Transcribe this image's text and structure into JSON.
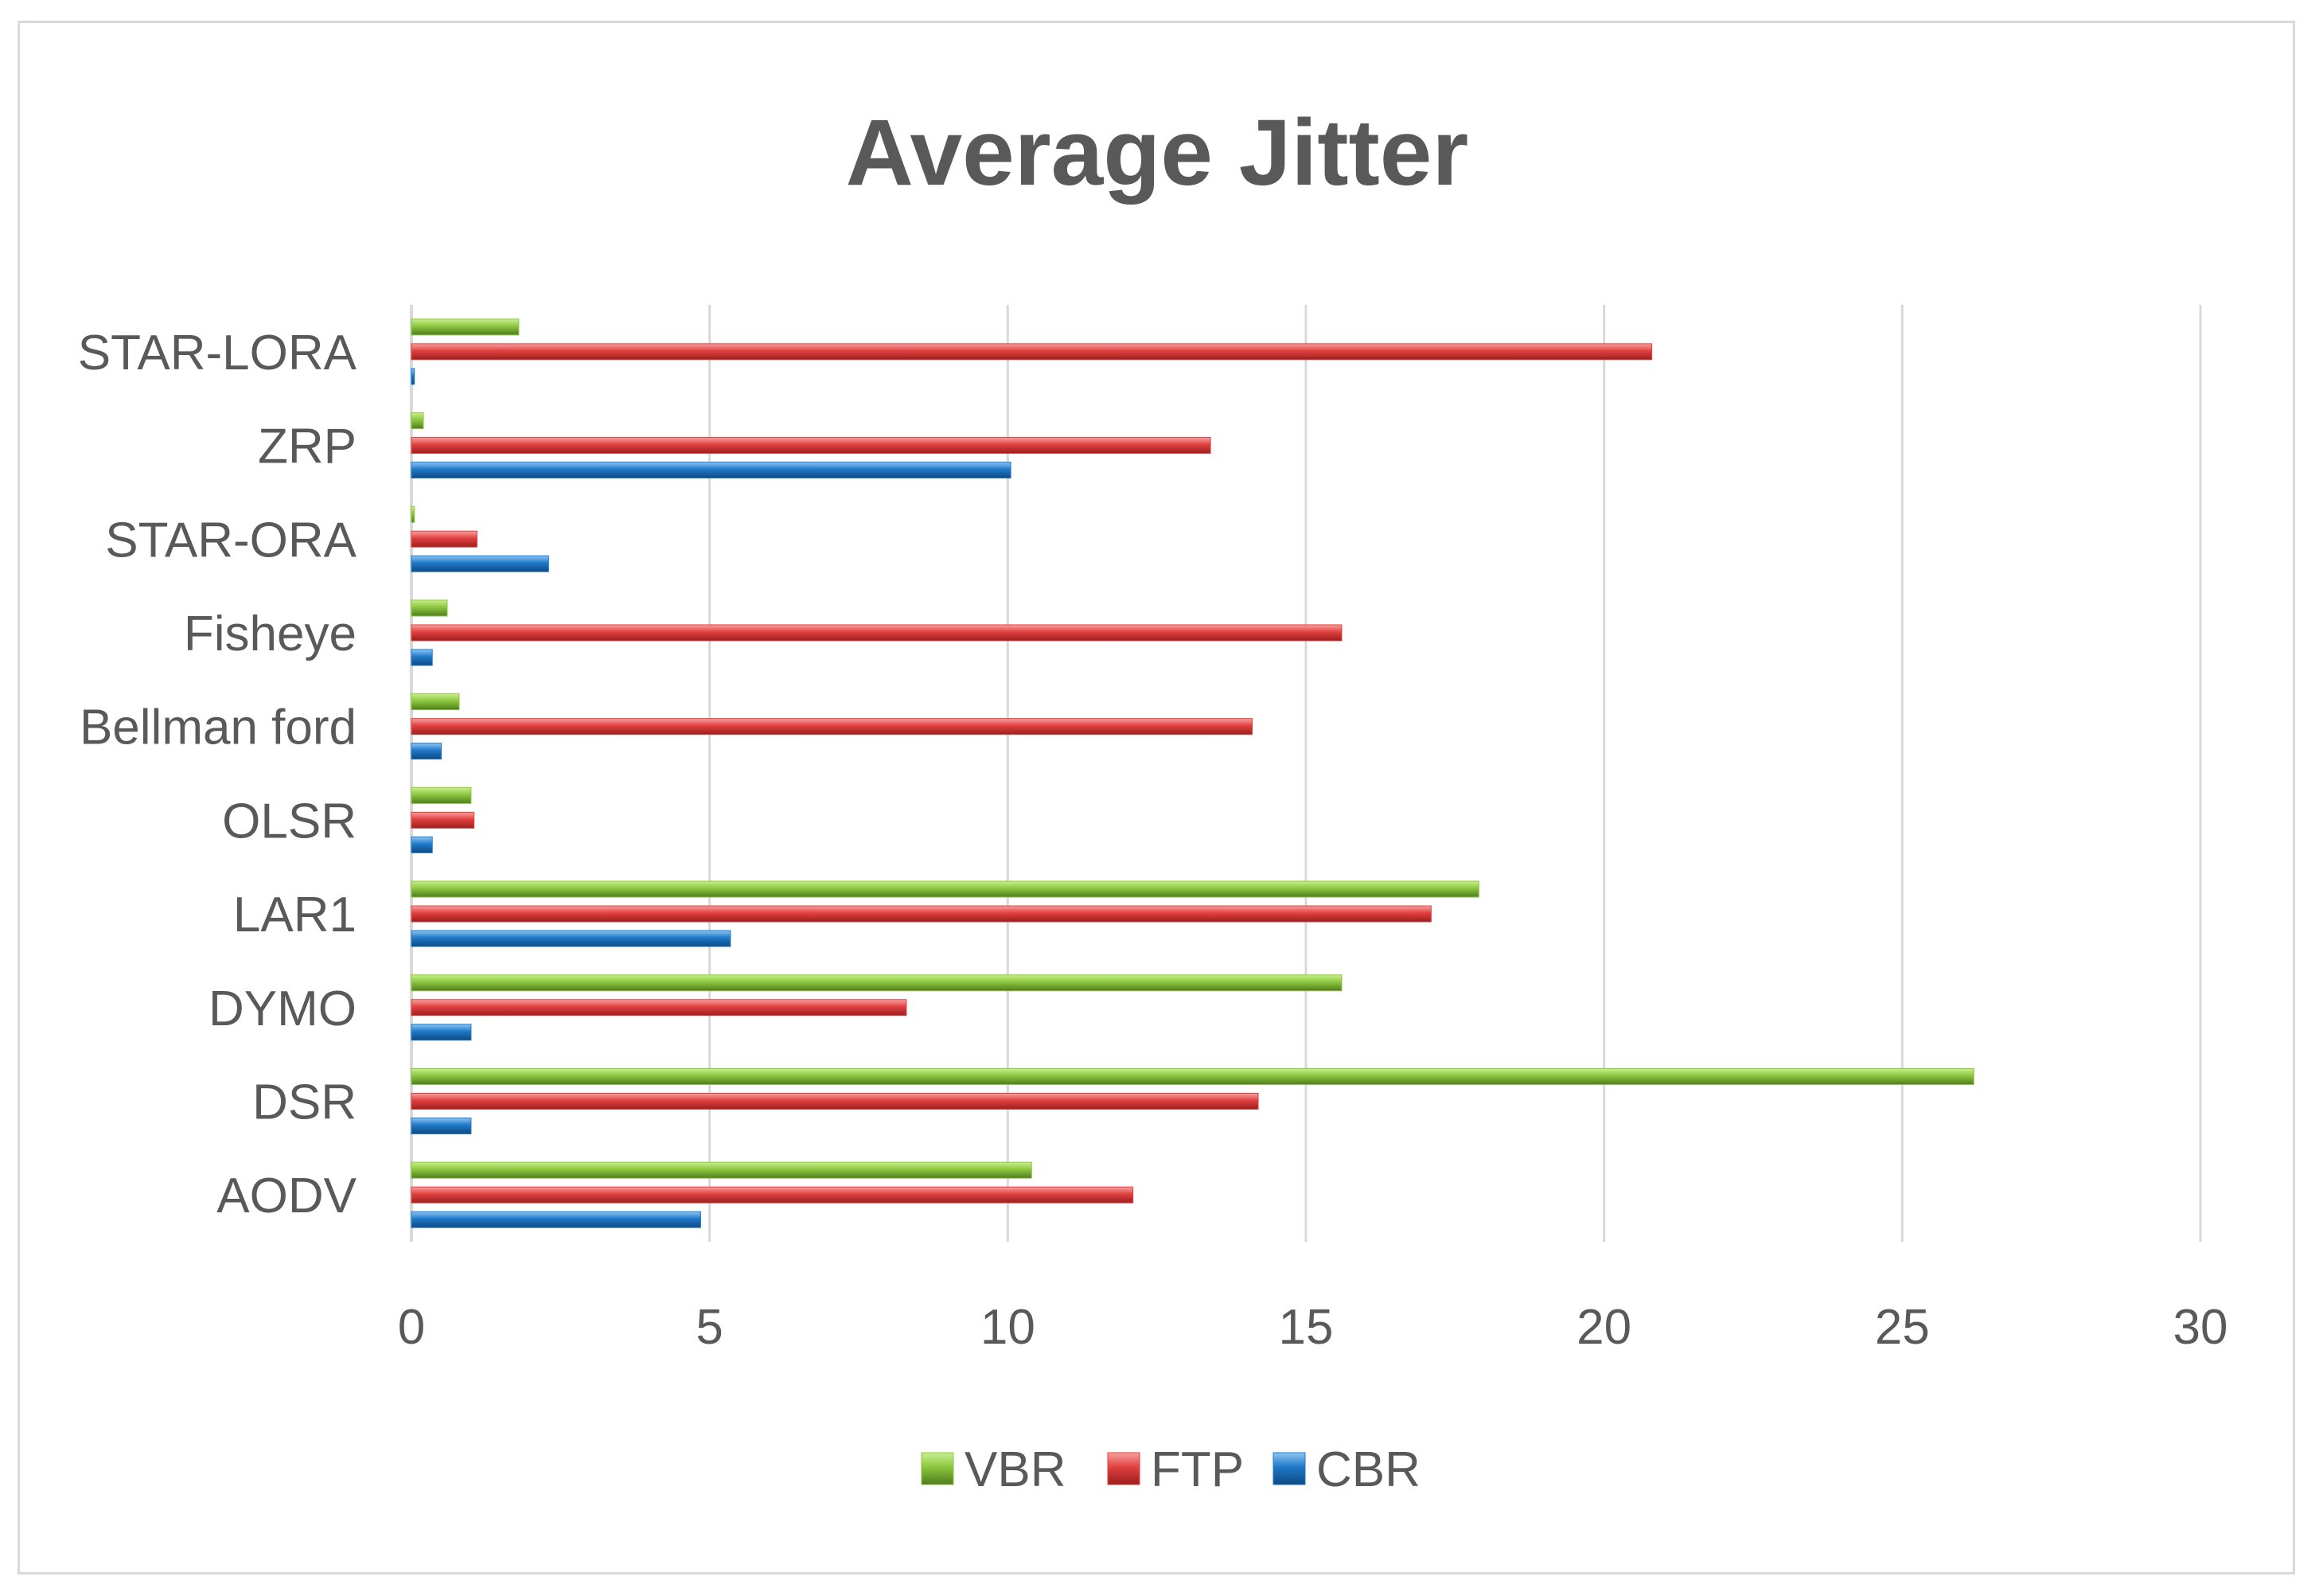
{
  "chart_data": {
    "type": "bar",
    "orientation": "horizontal",
    "title": "Average Jitter",
    "xlabel": "",
    "ylabel": "",
    "xlim": [
      0,
      30
    ],
    "x_ticks": [
      0,
      5,
      10,
      15,
      20,
      25,
      30
    ],
    "grid": true,
    "legend_position": "bottom",
    "categories": [
      "STAR-LORA",
      "ZRP",
      "STAR-ORA",
      "Fisheye",
      "Bellman ford",
      "OLSR",
      "LAR1",
      "DYMO",
      "DSR",
      "AODV"
    ],
    "series": [
      {
        "name": "VBR",
        "color": "#8cc63f",
        "values": [
          1.8,
          0.2,
          0.05,
          0.6,
          0.8,
          1.0,
          17.9,
          15.6,
          26.2,
          10.4
        ]
      },
      {
        "name": "FTP",
        "color": "#e0403f",
        "values": [
          20.8,
          13.4,
          1.1,
          15.6,
          14.1,
          1.05,
          17.1,
          8.3,
          14.2,
          12.1
        ]
      },
      {
        "name": "CBR",
        "color": "#1f78c8",
        "values": [
          0.05,
          10.05,
          2.3,
          0.35,
          0.5,
          0.35,
          5.35,
          1.0,
          1.0,
          4.85
        ]
      }
    ]
  }
}
